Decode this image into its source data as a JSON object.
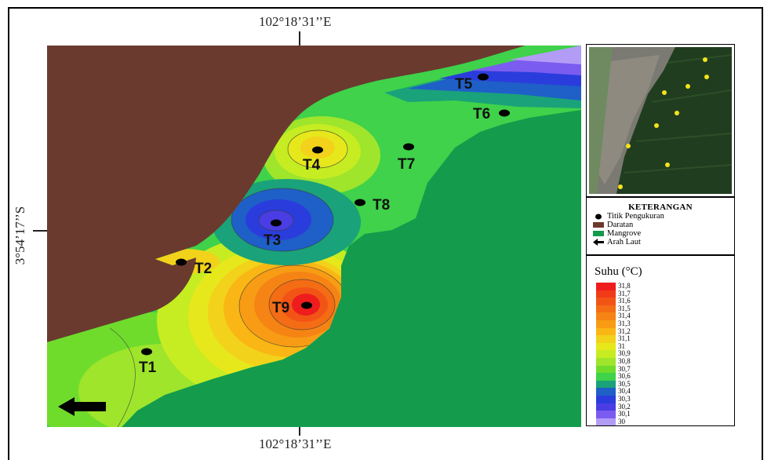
{
  "coordinates": {
    "top_longitude": "102°18’31’’E",
    "bottom_longitude": "102°18’31’’E",
    "left_latitude": "3°54’17’’S"
  },
  "points": [
    {
      "label": "T1"
    },
    {
      "label": "T2"
    },
    {
      "label": "T3"
    },
    {
      "label": "T4"
    },
    {
      "label": "T5"
    },
    {
      "label": "T6"
    },
    {
      "label": "T7"
    },
    {
      "label": "T8"
    },
    {
      "label": "T9"
    }
  ],
  "legend": {
    "title": "KETERANGAN",
    "items": [
      {
        "label": "Titik Pengukuran",
        "symbol": "black-dot"
      },
      {
        "label": "Daratan",
        "symbol": "brown-box",
        "color": "#6b3a2e"
      },
      {
        "label": "Mangrove",
        "symbol": "green-box",
        "color": "#149c4c"
      },
      {
        "label": "Arah Laut",
        "symbol": "arrow-left"
      }
    ]
  },
  "scale": {
    "title": "Suhu (°C)",
    "values": [
      "31,8",
      "31,7",
      "31,6",
      "31,5",
      "31,4",
      "31,3",
      "31,2",
      "31,1",
      "31",
      "30,9",
      "30,8",
      "30,7",
      "30,6",
      "30,5",
      "30,4",
      "30,3",
      "30,2",
      "30,1",
      "30"
    ],
    "colors": [
      "#ee1c1c",
      "#f03a18",
      "#f25416",
      "#f46c14",
      "#f58414",
      "#f79c14",
      "#f9b614",
      "#f2d21a",
      "#e6e81c",
      "#c6ec22",
      "#9ee52c",
      "#6fdc2c",
      "#3fd24a",
      "#1aa27a",
      "#1f5fc8",
      "#2a3ddc",
      "#4a3de4",
      "#7a5cf0",
      "#b39cf6"
    ]
  },
  "colors": {
    "land": "#6b3a2e",
    "mangrove": "#149c4c"
  }
}
